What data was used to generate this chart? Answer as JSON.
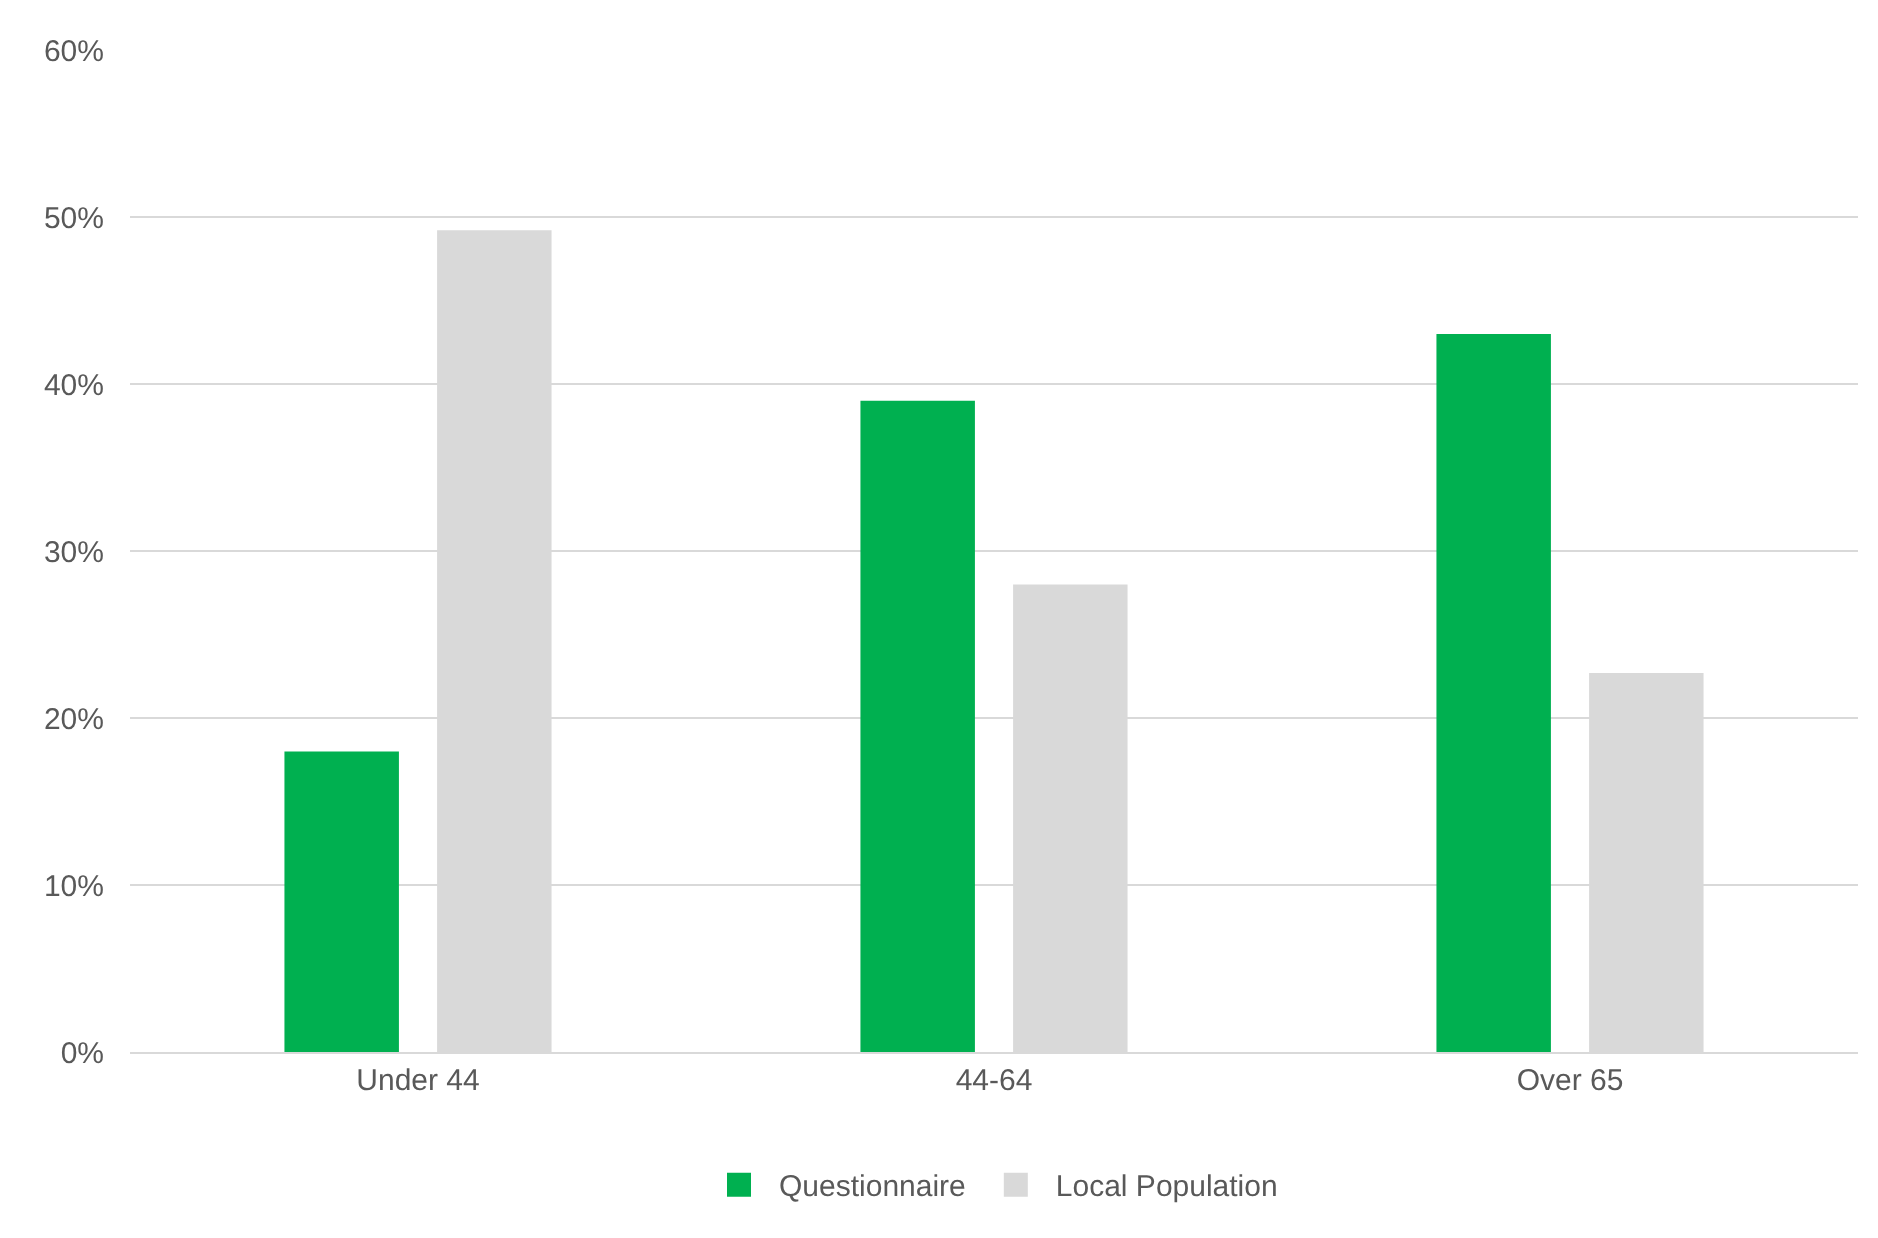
{
  "chart_data": {
    "type": "bar",
    "categories": [
      "Under 44",
      "44-64",
      "Over 65"
    ],
    "series": [
      {
        "name": "Questionnaire",
        "color": "#00b050",
        "values": [
          18,
          39,
          43
        ]
      },
      {
        "name": "Local Population",
        "color": "#d9d9d9",
        "values": [
          49.2,
          28,
          22.7
        ]
      }
    ],
    "ylim": [
      0,
      60
    ],
    "yticks": [
      {
        "value": 0,
        "label": "0%"
      },
      {
        "value": 10,
        "label": "10%"
      },
      {
        "value": 20,
        "label": "20%"
      },
      {
        "value": 30,
        "label": "30%"
      },
      {
        "value": 40,
        "label": "40%"
      },
      {
        "value": 50,
        "label": "50%"
      },
      {
        "value": 60,
        "label": "60%"
      }
    ],
    "grid": "y",
    "legend": "bottom"
  }
}
